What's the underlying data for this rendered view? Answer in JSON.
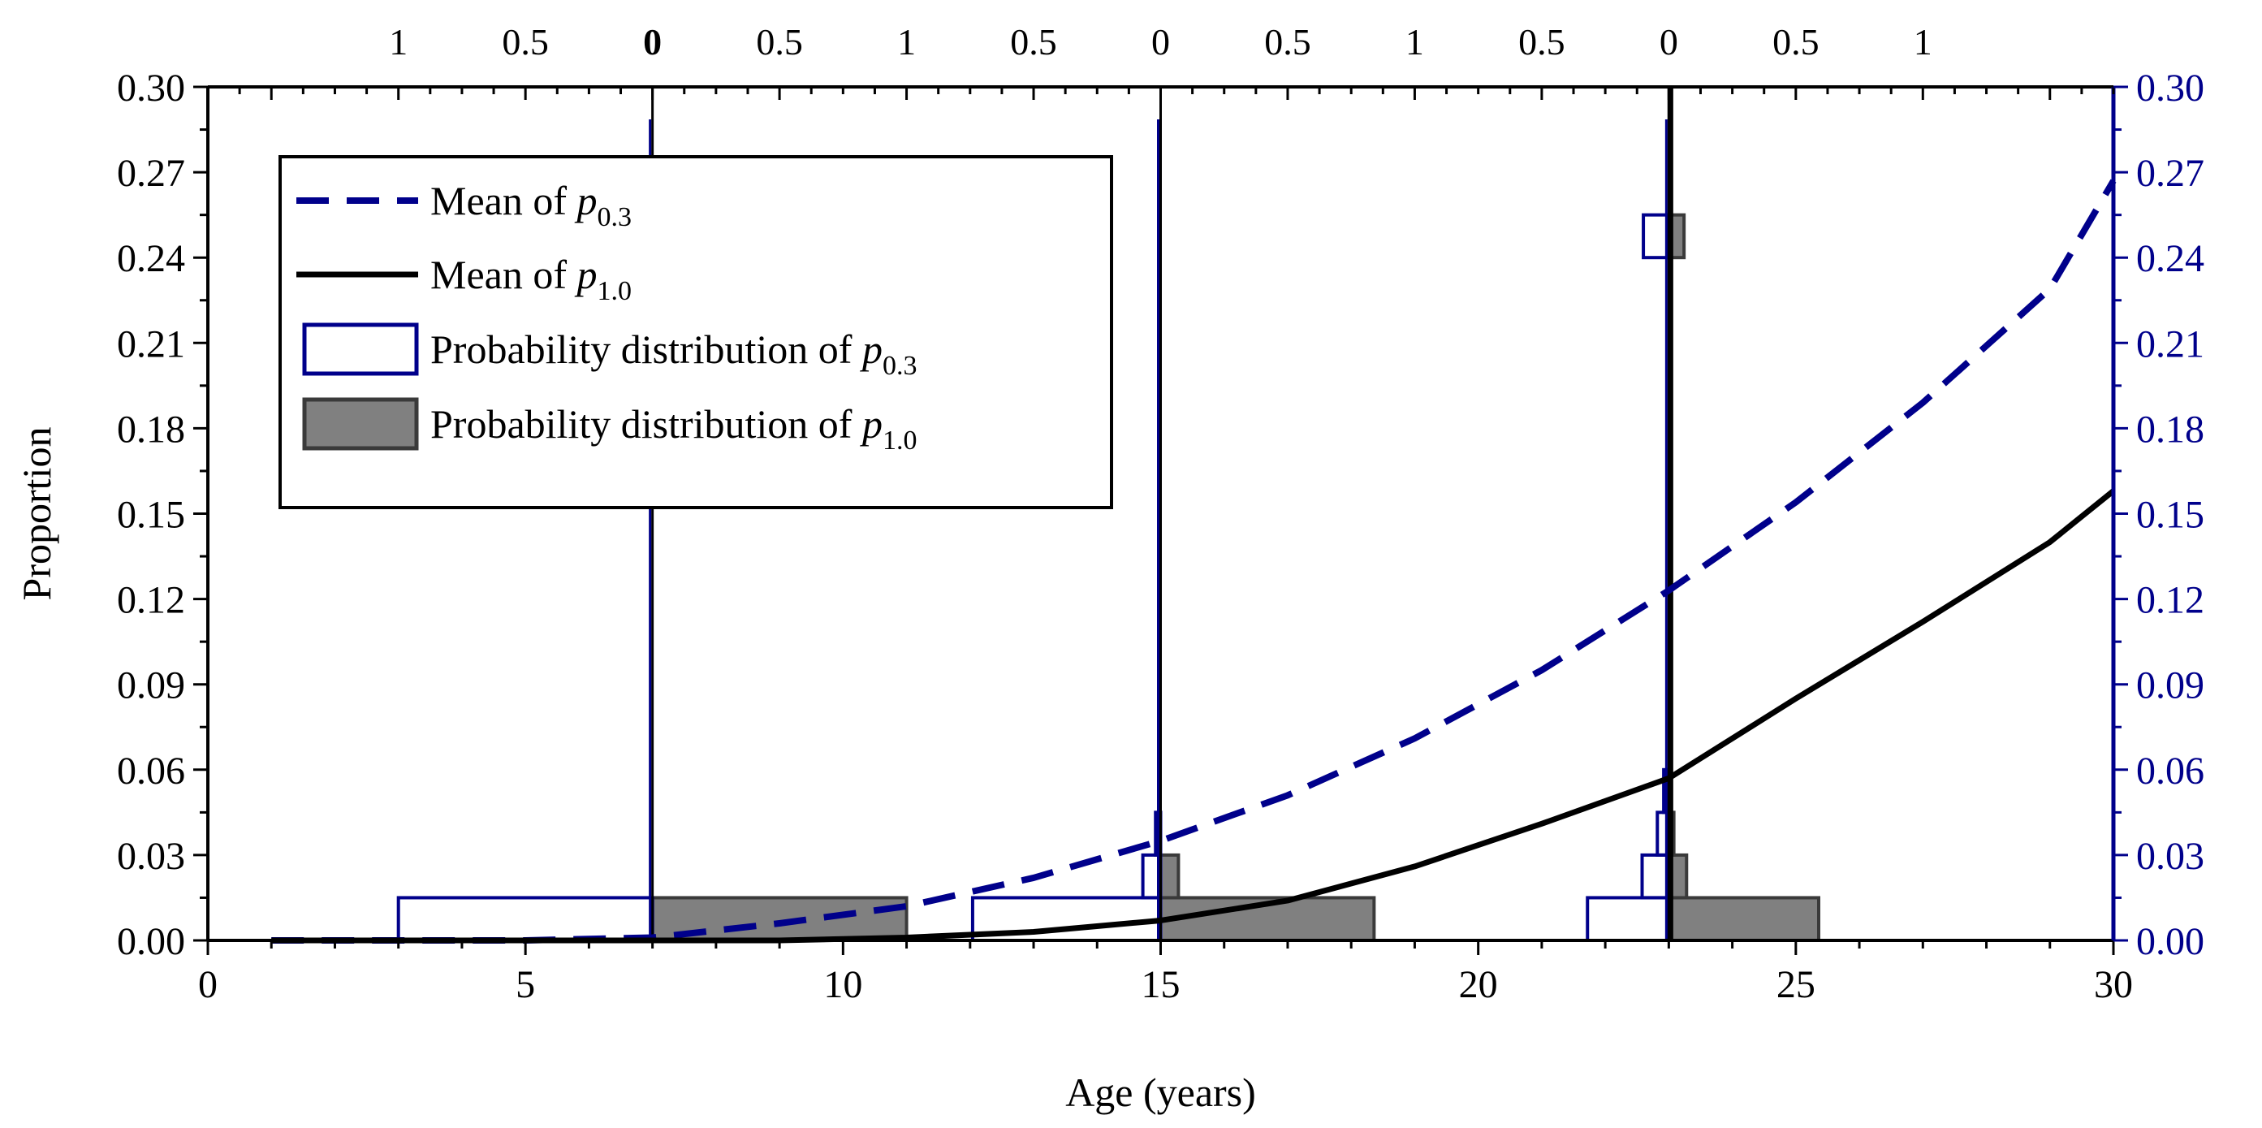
{
  "chart_data": {
    "type": "line",
    "title": "",
    "xlabel": "Age (years)",
    "ylabel": "Proportion",
    "xlim": [
      0,
      30
    ],
    "ylim": [
      0,
      0.3
    ],
    "x_ticks": [
      0,
      5,
      10,
      15,
      20,
      25,
      30
    ],
    "y_ticks": [
      "0.00",
      "0.03",
      "0.06",
      "0.09",
      "0.12",
      "0.15",
      "0.18",
      "0.21",
      "0.24",
      "0.27",
      "0.30"
    ],
    "y_ticks_right": [
      "0.00",
      "0.03",
      "0.06",
      "0.09",
      "0.12",
      "0.15",
      "0.18",
      "0.21",
      "0.24",
      "0.27",
      "0.30"
    ],
    "top_axis": {
      "description": "Probability scale for distributions at ages 7, 15 and 23 (0 at each age, extending left and right)",
      "labels": [
        {
          "x": 3.0,
          "text": "1"
        },
        {
          "x": 5.0,
          "text": "0.5"
        },
        {
          "x": 7.0,
          "text": "0",
          "bold": true
        },
        {
          "x": 9.0,
          "text": "0.5"
        },
        {
          "x": 11.0,
          "text": "1"
        },
        {
          "x": 13.0,
          "text": "0.5"
        },
        {
          "x": 15.0,
          "text": "0"
        },
        {
          "x": 17.0,
          "text": "0.5"
        },
        {
          "x": 19.0,
          "text": "1"
        },
        {
          "x": 21.0,
          "text": "0.5"
        },
        {
          "x": 23.0,
          "text": "0"
        },
        {
          "x": 25.0,
          "text": "0.5"
        },
        {
          "x": 27.0,
          "text": "1"
        }
      ]
    },
    "series": [
      {
        "name": "Mean of p0.3",
        "style": "dashed",
        "color": "#00008b",
        "x": [
          1,
          3,
          5,
          7,
          9,
          11,
          13,
          15,
          17,
          19,
          21,
          23,
          25,
          27,
          29,
          30
        ],
        "y": [
          0.0,
          0.0,
          0.0,
          0.001,
          0.006,
          0.012,
          0.022,
          0.035,
          0.051,
          0.071,
          0.095,
          0.123,
          0.154,
          0.189,
          0.229,
          0.267
        ]
      },
      {
        "name": "Mean of p1.0",
        "style": "solid",
        "color": "#000000",
        "x": [
          1,
          5,
          7,
          9,
          11,
          13,
          15,
          17,
          19,
          21,
          23,
          25,
          27,
          29,
          30
        ],
        "y": [
          0.0,
          0.0,
          0.0,
          0.0,
          0.001,
          0.003,
          0.007,
          0.014,
          0.026,
          0.041,
          0.057,
          0.085,
          0.112,
          0.14,
          0.158
        ]
      }
    ],
    "distributions": [
      {
        "age": 7,
        "p03": [
          {
            "y0": 0.0,
            "y1": 0.015,
            "prob": 1.0
          }
        ],
        "p10": [
          {
            "y0": 0.0,
            "y1": 0.015,
            "prob": 1.0
          }
        ]
      },
      {
        "age": 15,
        "p03": [
          {
            "y0": 0.0,
            "y1": 0.015,
            "prob": 0.74
          },
          {
            "y0": 0.015,
            "y1": 0.03,
            "prob": 0.07
          },
          {
            "y0": 0.03,
            "y1": 0.045,
            "prob": 0.02
          }
        ],
        "p10": [
          {
            "y0": 0.0,
            "y1": 0.015,
            "prob": 0.84
          },
          {
            "y0": 0.015,
            "y1": 0.03,
            "prob": 0.07
          }
        ]
      },
      {
        "age": 23,
        "p03": [
          {
            "y0": 0.0,
            "y1": 0.015,
            "prob": 0.32
          },
          {
            "y0": 0.015,
            "y1": 0.03,
            "prob": 0.105
          },
          {
            "y0": 0.03,
            "y1": 0.045,
            "prob": 0.045
          },
          {
            "y0": 0.045,
            "y1": 0.06,
            "prob": 0.02
          },
          {
            "y0": 0.24,
            "y1": 0.255,
            "prob": 0.1
          }
        ],
        "p10": [
          {
            "y0": 0.0,
            "y1": 0.015,
            "prob": 0.59
          },
          {
            "y0": 0.015,
            "y1": 0.03,
            "prob": 0.07
          },
          {
            "y0": 0.03,
            "y1": 0.045,
            "prob": 0.02
          },
          {
            "y0": 0.24,
            "y1": 0.255,
            "prob": 0.06
          }
        ]
      }
    ],
    "legend": {
      "position": "top-left",
      "items": [
        {
          "label": "Mean of ",
          "symbol": "p",
          "subscript": "0.3",
          "marker": "dashed-line",
          "color": "#00008b"
        },
        {
          "label": "Mean of ",
          "symbol": "p",
          "subscript": "1.0",
          "marker": "solid-line",
          "color": "#000000"
        },
        {
          "label": "Probability distribution of ",
          "symbol": "p",
          "subscript": "0.3",
          "marker": "open-box",
          "color": "#00008b"
        },
        {
          "label": "Probability distribution of ",
          "symbol": "p",
          "subscript": "1.0",
          "marker": "filled-box",
          "color": "#808080"
        }
      ]
    },
    "colors": {
      "p03": "#00008b",
      "p10": "#000000",
      "fill_p10": "#808080",
      "right_axis": "#00008b"
    }
  }
}
